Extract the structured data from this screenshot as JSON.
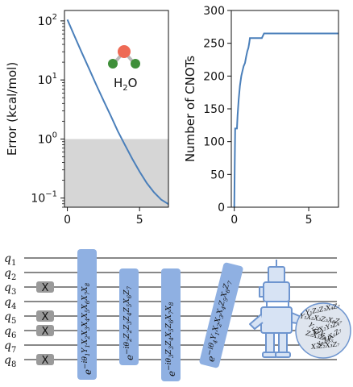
{
  "chart_data": [
    {
      "type": "line",
      "ylabel": "Error (kcal/mol)",
      "yscale": "log",
      "ylim": [
        0.07,
        150
      ],
      "xlim": [
        -0.2,
        7
      ],
      "x_ticks": [
        "0",
        "5"
      ],
      "y_ticks": [
        {
          "value": 100,
          "base": "10",
          "exp": "2"
        },
        {
          "value": 10,
          "base": "10",
          "exp": "1"
        },
        {
          "value": 1,
          "base": "10",
          "exp": "0"
        },
        {
          "value": 0.1,
          "base": "10",
          "exp": "−1"
        }
      ],
      "shaded_band": {
        "from": 0.07,
        "to": 1
      },
      "annotation": {
        "text": "H",
        "sub": "2",
        "text2": "O"
      },
      "series": [
        {
          "x": [
            0,
            0.5,
            1,
            1.5,
            2,
            2.5,
            3,
            3.5,
            4,
            4.5,
            5,
            5.5,
            6,
            6.5,
            7
          ],
          "y": [
            105,
            55,
            29,
            15.5,
            8.3,
            4.5,
            2.5,
            1.35,
            0.78,
            0.46,
            0.28,
            0.18,
            0.125,
            0.094,
            0.079
          ]
        }
      ],
      "color": "#4a7fba"
    },
    {
      "type": "line",
      "ylabel": "Number of CNOTs",
      "ylim": [
        0,
        300
      ],
      "xlim": [
        -0.2,
        7
      ],
      "x_ticks": [
        "0",
        "5"
      ],
      "y_ticks": [
        "0",
        "50",
        "100",
        "150",
        "200",
        "250",
        "300"
      ],
      "series": [
        {
          "x": [
            0,
            0.03,
            0.06,
            0.1,
            0.13,
            0.18,
            0.22,
            0.3,
            0.38,
            0.47,
            0.55,
            0.63,
            0.72,
            0.8,
            0.88,
            0.95,
            1.0,
            1.05,
            1.1,
            1.2,
            1.28,
            1.5,
            1.7,
            1.85,
            2.0,
            2.2,
            3,
            4,
            5,
            6,
            7
          ],
          "y": [
            0,
            60,
            120,
            120,
            120,
            120,
            140,
            165,
            185,
            200,
            208,
            215,
            220,
            230,
            238,
            243,
            250,
            258,
            258,
            258,
            258,
            258,
            258,
            258,
            265,
            265,
            265,
            265,
            265,
            265,
            265
          ]
        }
      ],
      "color": "#4a7fba"
    }
  ],
  "circuit": {
    "qubits": [
      {
        "base": "q",
        "sub": "1"
      },
      {
        "base": "q",
        "sub": "2"
      },
      {
        "base": "q",
        "sub": "3"
      },
      {
        "base": "q",
        "sub": "4"
      },
      {
        "base": "q",
        "sub": "5"
      },
      {
        "base": "q",
        "sub": "6"
      },
      {
        "base": "q",
        "sub": "7"
      },
      {
        "base": "q",
        "sub": "8"
      }
    ],
    "x_gate_label": "X",
    "x_gates_on": [
      3,
      5,
      6,
      8
    ],
    "gates": [
      {
        "theta": "1",
        "paulis": [
          [
            "Y",
            "1"
          ],
          [
            "X",
            "2"
          ],
          [
            "X",
            "3"
          ],
          [
            "X",
            "4"
          ],
          [
            "X",
            "5"
          ],
          [
            "X",
            "6"
          ],
          [
            "X",
            "7"
          ],
          [
            "X",
            "8"
          ]
        ]
      },
      {
        "theta": "2",
        "paulis": [
          [
            "Z",
            "2"
          ],
          [
            "Z",
            "3"
          ],
          [
            "Z",
            "4"
          ],
          [
            "Z",
            "5"
          ],
          [
            "X",
            "6"
          ],
          [
            "Z",
            "7"
          ]
        ]
      },
      {
        "theta": "3",
        "paulis": [
          [
            "Z",
            "3"
          ],
          [
            "Z",
            "4"
          ],
          [
            "X",
            "5"
          ],
          [
            "Z",
            "6"
          ],
          [
            "X",
            "7"
          ],
          [
            "X",
            "8"
          ]
        ]
      },
      {
        "theta": "4",
        "paulis": [
          [
            "Y",
            "1"
          ],
          [
            "X",
            "2"
          ],
          [
            "X",
            "3"
          ],
          [
            "X",
            "4"
          ],
          [
            "Z",
            "5"
          ],
          [
            "X",
            "6"
          ],
          [
            "Z",
            "7"
          ]
        ]
      }
    ],
    "bubble_terms": [
      "Y₁Z₂Z₃X₄Z₇",
      "Y₁X₂X₃Z₅X₆Z₇",
      "X₁X₂Y₃Z₄",
      "Z₂X₃Z₄X₅",
      "X₁Z₂X₃Z₇",
      "Y₁Z₂X₃",
      "X₂Z₄X₆Z₇"
    ],
    "colors": {
      "gate": "#8fb0e2",
      "x_gate": "#9a9a9a",
      "robot": "#6e95cf",
      "robot_fill": "#d7e3f4",
      "bubble": "#dfe5ee"
    }
  },
  "molecule": {
    "o_color": "#ee6a55",
    "h_color": "#3f8f3a",
    "bond_color": "#b9b9b9"
  }
}
